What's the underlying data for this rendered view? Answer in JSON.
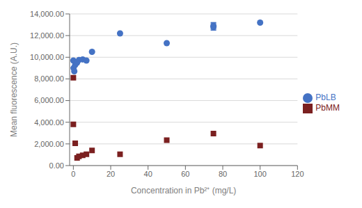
{
  "chart_data": {
    "type": "scatter",
    "xlabel": "Concentration in Pb²⁺ (mg/L)",
    "ylabel": "Mean fluorescence (A.U.)",
    "xlim": [
      -2,
      120
    ],
    "ylim": [
      0,
      14000
    ],
    "xticks": [
      0,
      20,
      40,
      60,
      80,
      100,
      120
    ],
    "yticks": [
      {
        "value": 0,
        "label": "0.00"
      },
      {
        "value": 2000,
        "label": "2,000.00"
      },
      {
        "value": 4000,
        "label": "4,000.00"
      },
      {
        "value": 6000,
        "label": "6,000.00"
      },
      {
        "value": 8000,
        "label": "8,000.00"
      },
      {
        "value": 10000,
        "label": "10,000.00"
      },
      {
        "value": 12000,
        "label": "12,000.00"
      },
      {
        "value": 14000,
        "label": "14,000.00"
      }
    ],
    "grid": "y",
    "legend": "right",
    "series": [
      {
        "name": "PbLB",
        "color": "#4472C4",
        "marker": "circle",
        "x": [
          0,
          0.1,
          0.5,
          1,
          2,
          3,
          5,
          7,
          10,
          25,
          50,
          75,
          75,
          100
        ],
        "values": [
          9700,
          9000,
          8700,
          9300,
          9500,
          9750,
          9800,
          9700,
          10500,
          12200,
          11300,
          12800,
          12900,
          13200
        ],
        "yerr": [
          null,
          null,
          null,
          null,
          null,
          null,
          null,
          null,
          null,
          null,
          null,
          300,
          300,
          null
        ]
      },
      {
        "name": "PbMM",
        "color": "#7B2020",
        "marker": "square",
        "x": [
          0,
          0,
          1,
          2,
          3,
          5,
          7,
          10,
          25,
          50,
          75,
          100
        ],
        "values": [
          8100,
          3800,
          2050,
          700,
          850,
          950,
          1050,
          1400,
          1050,
          2350,
          2950,
          1850
        ]
      }
    ]
  }
}
